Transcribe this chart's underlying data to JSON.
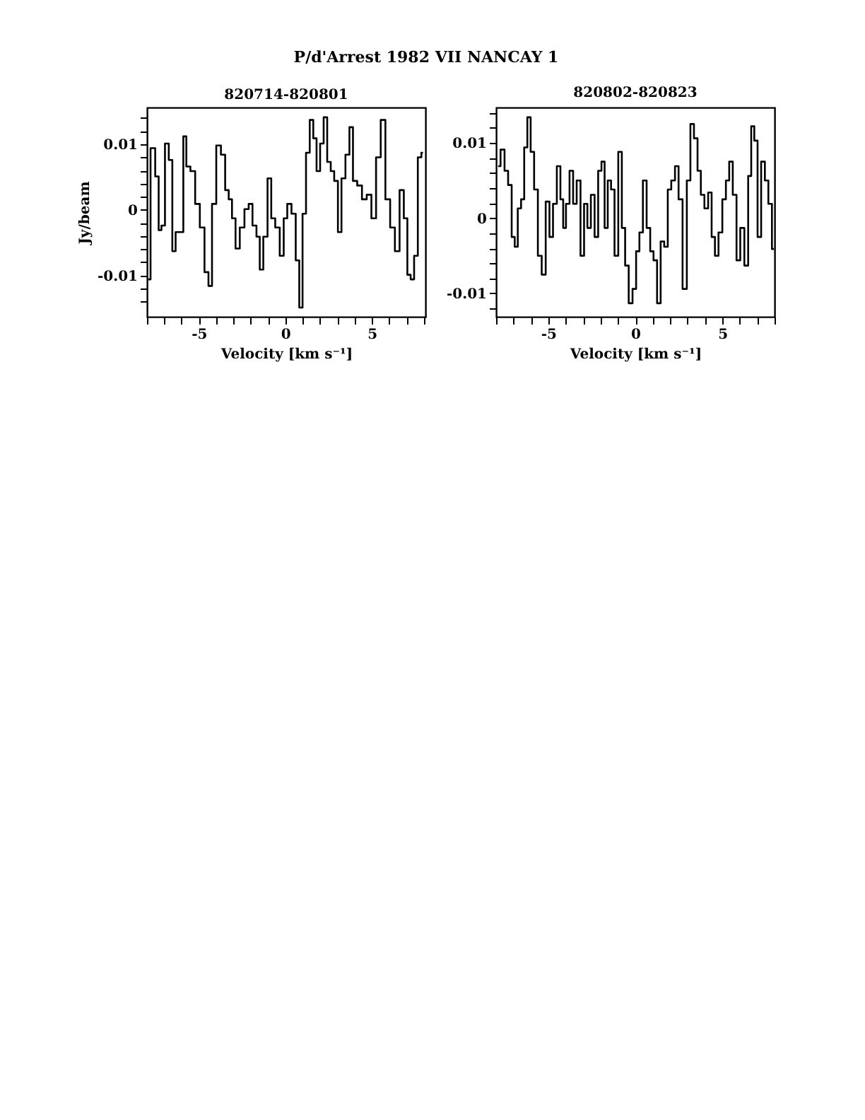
{
  "chart_data": [
    {
      "type": "step",
      "title": "820714-820801",
      "xlabel": "Velocity [km s⁻¹]",
      "ylabel": "Jy/beam",
      "annotations": [
        "P/d'Arrest 1982 VII   NANCAY      1"
      ],
      "grid": false,
      "line_style": "solid",
      "marker": "none",
      "xlim": [
        -8,
        8.1
      ],
      "ylim": [
        -0.0163,
        0.0156
      ],
      "xticks": [
        {
          "value": -8,
          "label": null
        },
        {
          "value": -7,
          "label": null
        },
        {
          "value": -6,
          "label": null
        },
        -5,
        {
          "value": -4,
          "label": null
        },
        {
          "value": -3,
          "label": null
        },
        {
          "value": -2,
          "label": null
        },
        {
          "value": -1,
          "label": null
        },
        0,
        {
          "value": 1,
          "label": null
        },
        {
          "value": 2,
          "label": null
        },
        {
          "value": 3,
          "label": null
        },
        {
          "value": 4,
          "label": null
        },
        5,
        {
          "value": 6,
          "label": null
        },
        {
          "value": 7,
          "label": null
        },
        {
          "value": 8,
          "label": null
        }
      ],
      "yticks": [
        {
          "value": -0.014,
          "label": null
        },
        {
          "value": -0.012,
          "label": null
        },
        -0.01,
        {
          "value": -0.008,
          "label": null
        },
        {
          "value": -0.006,
          "label": null
        },
        {
          "value": -0.004,
          "label": null
        },
        {
          "value": -0.002,
          "label": null
        },
        0,
        {
          "value": 0.002,
          "label": null
        },
        {
          "value": 0.004,
          "label": null
        },
        {
          "value": 0.006,
          "label": null
        },
        {
          "value": 0.008,
          "label": null
        },
        0.01,
        {
          "value": 0.012,
          "label": null
        },
        {
          "value": 0.014,
          "label": null
        }
      ],
      "series": [
        {
          "color": "#000000",
          "x": [
            -7.93,
            -7.66,
            -7.39,
            -7.26,
            -7.07,
            -6.85,
            -6.63,
            -6.44,
            -6.25,
            -5.98,
            -5.82,
            -5.63,
            -5.35,
            -5.08,
            -4.81,
            -4.54,
            -4.35,
            -4.13,
            -3.86,
            -3.59,
            -3.37,
            -3.18,
            -2.99,
            -2.77,
            -2.5,
            -2.23,
            -2.01,
            -1.79,
            -1.55,
            -1.41,
            -1.14,
            -0.92,
            -0.71,
            -0.46,
            -0.19,
            0,
            0.22,
            0.49,
            0.71,
            0.9,
            1.09,
            1.3,
            1.52,
            1.71,
            1.9,
            2.12,
            2.31,
            2.53,
            2.72,
            2.93,
            3.15,
            3.34,
            3.61,
            3.8,
            4.02,
            4.29,
            4.57,
            4.84,
            5.11,
            5.38,
            5.65,
            5.92,
            6.2,
            6.47,
            6.74,
            6.96,
            7.15,
            7.34,
            7.55,
            7.77,
            7.96
          ],
          "values": [
            -0.0106,
            0.0094,
            0.0051,
            -0.0031,
            -0.0024,
            0.0101,
            0.0076,
            -0.0063,
            -0.0034,
            -0.0034,
            0.0112,
            0.0066,
            0.0059,
            0.0009,
            -0.0027,
            -0.0095,
            -0.0116,
            0.0009,
            0.0098,
            0.0084,
            0.003,
            0.0016,
            -0.0013,
            -0.0059,
            -0.0027,
            0.0001,
            0.0009,
            -0.0024,
            -0.0041,
            -0.0091,
            -0.0041,
            0.0048,
            -0.0013,
            -0.0027,
            -0.007,
            -0.0013,
            0.0009,
            -0.0006,
            -0.0077,
            -0.0149,
            -0.0006,
            0.0087,
            0.0137,
            0.0109,
            0.0059,
            0.0101,
            0.0141,
            0.0073,
            0.0059,
            0.0044,
            -0.0034,
            0.0048,
            0.0084,
            0.0126,
            0.0044,
            0.0037,
            0.0016,
            0.0023,
            -0.0013,
            0.008,
            0.0137,
            0.0016,
            -0.0027,
            -0.0063,
            0.003,
            -0.0013,
            -0.0099,
            -0.0106,
            -0.007,
            0.008,
            0.0087
          ]
        }
      ]
    },
    {
      "type": "step",
      "title": "820802-820823",
      "xlabel": "Velocity [km s⁻¹]",
      "grid": false,
      "line_style": "solid",
      "marker": "none",
      "xlim": [
        -8,
        8
      ],
      "ylim": [
        -0.0131,
        0.0147
      ],
      "xticks": [
        {
          "value": -8,
          "label": null
        },
        {
          "value": -7,
          "label": null
        },
        {
          "value": -6,
          "label": null
        },
        -5,
        {
          "value": -4,
          "label": null
        },
        {
          "value": -3,
          "label": null
        },
        {
          "value": -2,
          "label": null
        },
        {
          "value": -1,
          "label": null
        },
        0,
        {
          "value": 1,
          "label": null
        },
        {
          "value": 2,
          "label": null
        },
        {
          "value": 3,
          "label": null
        },
        {
          "value": 4,
          "label": null
        },
        5,
        {
          "value": 6,
          "label": null
        },
        {
          "value": 7,
          "label": null
        },
        {
          "value": 8,
          "label": null
        }
      ],
      "yticks": [
        {
          "value": -0.012,
          "label": null
        },
        -0.01,
        {
          "value": -0.008,
          "label": null
        },
        {
          "value": -0.006,
          "label": null
        },
        {
          "value": -0.004,
          "label": null
        },
        {
          "value": -0.002,
          "label": null
        },
        0,
        {
          "value": 0.002,
          "label": null
        },
        {
          "value": 0.004,
          "label": null
        },
        {
          "value": 0.006,
          "label": null
        },
        {
          "value": 0.008,
          "label": null
        },
        0.01,
        {
          "value": 0.012,
          "label": null
        },
        {
          "value": 0.014,
          "label": null
        }
      ],
      "series": [
        {
          "color": "#000000",
          "x": [
            -7.88,
            -7.61,
            -7.42,
            -7.2,
            -7.01,
            -6.85,
            -6.66,
            -6.47,
            -6.3,
            -6.11,
            -5.92,
            -5.71,
            -5.49,
            -5.27,
            -5.03,
            -4.84,
            -4.62,
            -4.4,
            -4.21,
            -4.08,
            -3.89,
            -3.67,
            -3.48,
            -3.26,
            -3.04,
            -2.85,
            -2.66,
            -2.45,
            -2.23,
            -2.04,
            -1.85,
            -1.68,
            -1.49,
            -1.3,
            -1.09,
            -0.87,
            -0.68,
            -0.49,
            -0.27,
            -0.05,
            0.14,
            0.33,
            0.54,
            0.76,
            0.95,
            1.14,
            1.36,
            1.55,
            1.77,
            1.96,
            2.17,
            2.39,
            2.58,
            2.85,
            3.07,
            3.26,
            3.48,
            3.67,
            3.86,
            4.08,
            4.29,
            4.48,
            4.67,
            4.89,
            5.11,
            5.3,
            5.49,
            5.71,
            5.92,
            6.14,
            6.39,
            6.58,
            6.74,
            6.93,
            7.12,
            7.34,
            7.55,
            7.74,
            7.96
          ],
          "values": [
            0.0069,
            0.0091,
            0.0063,
            0.0044,
            -0.0025,
            -0.0038,
            0.0013,
            0.0025,
            0.0094,
            0.0134,
            0.0088,
            0.0038,
            -0.005,
            -0.0075,
            0.0022,
            -0.0025,
            0.0019,
            0.0069,
            0.0025,
            -0.0013,
            0.0019,
            0.0063,
            0.0019,
            0.005,
            -0.005,
            0.0019,
            -0.0013,
            0.0031,
            -0.0025,
            0.0063,
            0.0075,
            -0.0013,
            0.005,
            0.0038,
            -0.005,
            0.0088,
            -0.0013,
            -0.0063,
            -0.0113,
            -0.0094,
            -0.0044,
            -0.0019,
            0.005,
            -0.0013,
            -0.0044,
            -0.0056,
            -0.0113,
            -0.0031,
            -0.0038,
            0.0038,
            0.005,
            0.0069,
            0.0025,
            -0.0094,
            0.005,
            0.0125,
            0.0106,
            0.0063,
            0.0031,
            0.0013,
            0.0034,
            -0.0025,
            -0.005,
            -0.0019,
            0.0025,
            0.005,
            0.0075,
            0.0031,
            -0.0056,
            -0.0013,
            -0.0063,
            0.0056,
            0.0122,
            0.0103,
            -0.0025,
            0.0075,
            0.005,
            0.0019,
            -0.0041
          ]
        }
      ]
    }
  ]
}
